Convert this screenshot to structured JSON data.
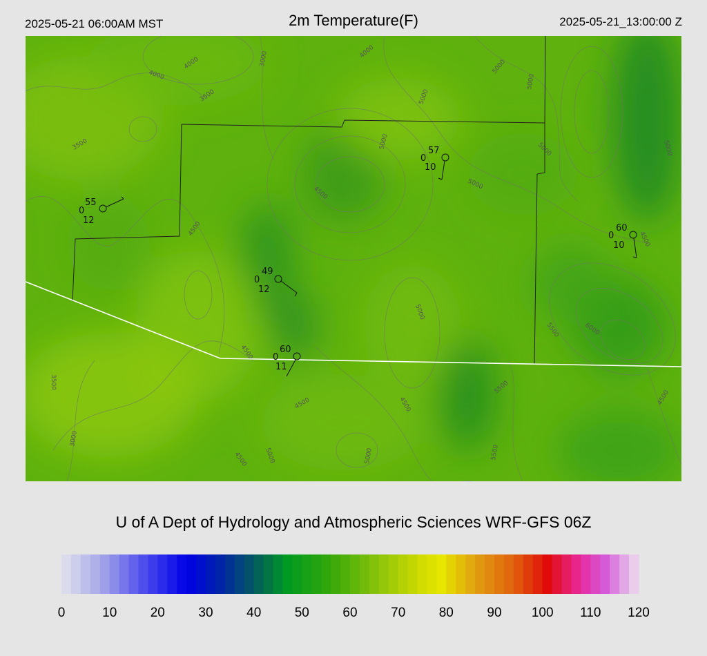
{
  "header": {
    "valid_local": "2025-05-21 06:00AM MST",
    "title": "2m Temperature(F)",
    "valid_utc": "2025-05-21_13:00:00 Z"
  },
  "footer": {
    "credit": "U of A Dept of Hydrology and Atmospheric Sciences WRF-GFS 06Z"
  },
  "colorbar": {
    "units": "F",
    "min": 0,
    "max": 120,
    "ticks": [
      "0",
      "10",
      "20",
      "30",
      "40",
      "50",
      "60",
      "70",
      "80",
      "90",
      "100",
      "110",
      "120"
    ],
    "stops": [
      {
        "v": 0,
        "c": "#e2e2ee"
      },
      {
        "v": 8,
        "c": "#a9a9e8"
      },
      {
        "v": 18,
        "c": "#4444ee"
      },
      {
        "v": 26,
        "c": "#0000e6"
      },
      {
        "v": 33,
        "c": "#0024a8"
      },
      {
        "v": 40,
        "c": "#055a60"
      },
      {
        "v": 47,
        "c": "#009a22"
      },
      {
        "v": 56,
        "c": "#36a70a"
      },
      {
        "v": 66,
        "c": "#8cc40a"
      },
      {
        "v": 75,
        "c": "#d2dc00"
      },
      {
        "v": 79,
        "c": "#e6e600"
      },
      {
        "v": 86,
        "c": "#e0a010"
      },
      {
        "v": 94,
        "c": "#e0600c"
      },
      {
        "v": 101,
        "c": "#e00a0a"
      },
      {
        "v": 108,
        "c": "#e82aa0"
      },
      {
        "v": 113,
        "c": "#d45ad8"
      },
      {
        "v": 120,
        "c": "#ece0ee"
      }
    ]
  },
  "map": {
    "contour_interval_ft": 500,
    "contour_labels": [
      "4000",
      "4000",
      "3000",
      "3500",
      "3500",
      "4000",
      "5000",
      "5000",
      "5000",
      "5000",
      "5000",
      "4500",
      "4500",
      "5000",
      "5000",
      "5000",
      "5500",
      "6000",
      "4500",
      "4500",
      "3500",
      "3000",
      "4500",
      "5000",
      "4500",
      "5000",
      "5500",
      "5500",
      "4500",
      "4500"
    ],
    "stations": [
      {
        "temp": "55",
        "dewpt": "0",
        "vis": "12"
      },
      {
        "temp": "57",
        "dewpt": "0",
        "vis": "10"
      },
      {
        "temp": "60",
        "dewpt": "0",
        "vis": "10"
      },
      {
        "temp": "49",
        "dewpt": "0",
        "vis": "12"
      },
      {
        "temp": "60",
        "dewpt": "0",
        "vis": "11"
      }
    ]
  }
}
